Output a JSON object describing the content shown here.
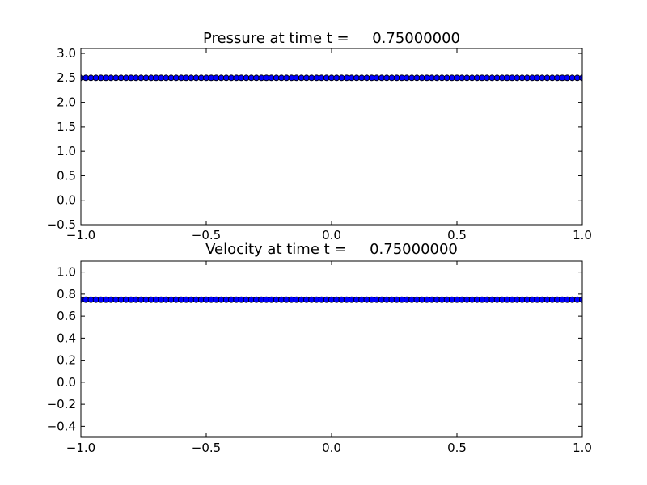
{
  "chart_data": [
    {
      "type": "scatter",
      "title": "Pressure at time t =     0.75000000",
      "xlabel": "",
      "ylabel": "",
      "xlim": [
        -1.0,
        1.0
      ],
      "ylim": [
        -0.5,
        3.1
      ],
      "xticks": [
        "−1.0",
        "−0.5",
        "0.0",
        "0.5",
        "1.0"
      ],
      "yticks": [
        "−0.5",
        "0.0",
        "0.5",
        "1.0",
        "1.5",
        "2.0",
        "2.5",
        "3.0"
      ],
      "grid": false,
      "marker_color": "#0000ff",
      "x_start": -1.0,
      "x_end": 1.0,
      "num_points": 101,
      "y_value": 2.5
    },
    {
      "type": "scatter",
      "title": "Velocity at time t =     0.75000000",
      "xlabel": "",
      "ylabel": "",
      "xlim": [
        -1.0,
        1.0
      ],
      "ylim": [
        -0.5,
        1.1
      ],
      "xticks": [
        "−1.0",
        "−0.5",
        "0.0",
        "0.5",
        "1.0"
      ],
      "yticks": [
        "−0.4",
        "−0.2",
        "0.0",
        "0.2",
        "0.4",
        "0.6",
        "0.8",
        "1.0"
      ],
      "grid": false,
      "marker_color": "#0000ff",
      "x_start": -1.0,
      "x_end": 1.0,
      "num_points": 101,
      "y_value": 0.75
    }
  ]
}
